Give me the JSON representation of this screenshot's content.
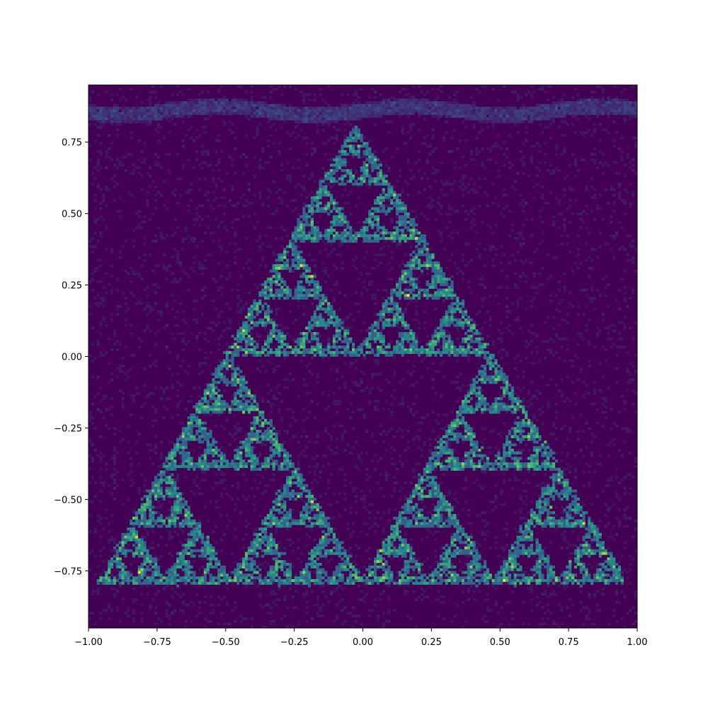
{
  "chart_data": {
    "type": "heatmap",
    "title": "",
    "xlabel": "",
    "ylabel": "",
    "xlim": [
      -1.0,
      1.0
    ],
    "ylim": [
      -0.95,
      0.95
    ],
    "grid": false,
    "colormap": "viridis",
    "x_ticks": [
      {
        "value": -1.0,
        "label": "−1.00"
      },
      {
        "value": -0.75,
        "label": "−0.75"
      },
      {
        "value": -0.5,
        "label": "−0.50"
      },
      {
        "value": -0.25,
        "label": "−0.25"
      },
      {
        "value": 0.0,
        "label": "0.00"
      },
      {
        "value": 0.25,
        "label": "0.25"
      },
      {
        "value": 0.5,
        "label": "0.50"
      },
      {
        "value": 0.75,
        "label": "0.75"
      },
      {
        "value": 1.0,
        "label": "1.00"
      }
    ],
    "y_ticks": [
      {
        "value": -0.75,
        "label": "−0.75"
      },
      {
        "value": -0.5,
        "label": "−0.50"
      },
      {
        "value": -0.25,
        "label": "−0.25"
      },
      {
        "value": 0.0,
        "label": "0.00"
      },
      {
        "value": 0.25,
        "label": "0.25"
      },
      {
        "value": 0.5,
        "label": "0.50"
      },
      {
        "value": 0.75,
        "label": "0.75"
      }
    ],
    "structure": {
      "shape": "sierpinski-triangle",
      "vertices": [
        [
          -0.96,
          -0.79
        ],
        [
          0.96,
          -0.79
        ],
        [
          -0.03,
          0.81
        ]
      ],
      "recursion_levels": 4,
      "noise_band_y": 0.86
    },
    "colors": {
      "background": "#440154",
      "low": "#3b528b",
      "mid": "#21918c",
      "high": "#5ec962",
      "peak": "#fde725"
    }
  }
}
